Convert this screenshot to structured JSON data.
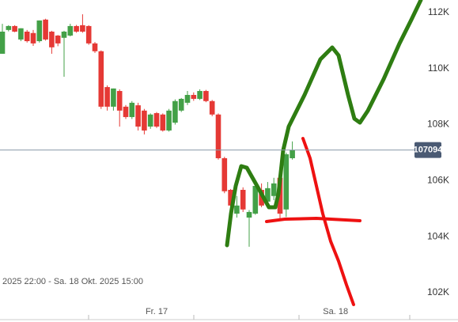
{
  "chart_data": {
    "type": "candlestick",
    "subtitle": "2025 22:00 - Sa. 18 Okt. 2025 15:00",
    "categories": [
      null,
      null,
      null,
      null,
      null,
      null,
      null,
      null,
      null,
      null,
      null,
      null,
      null,
      null,
      null,
      null,
      null,
      null,
      null,
      null,
      null,
      null,
      null,
      null,
      null,
      "Fr. 17",
      null,
      null,
      null,
      null,
      null,
      null,
      null,
      null,
      null,
      null,
      null,
      null,
      null,
      null,
      null,
      null,
      null,
      null,
      null,
      null,
      null,
      null,
      null,
      null,
      null,
      null,
      null,
      null,
      "Sa. 18",
      null,
      null,
      null,
      null,
      null,
      null,
      null,
      null,
      null,
      null,
      null
    ],
    "open": [
      110530,
      111380,
      111520,
      111040,
      111320,
      111270,
      110980,
      111750,
      111320,
      111180,
      111100,
      111180,
      111520,
      111550,
      111520,
      110900,
      110620,
      109340,
      108640,
      109200,
      108640,
      108270,
      108690,
      108500,
      107930,
      108410,
      108360,
      107790,
      108070,
      108500,
      108780,
      109060,
      108920,
      109200,
      108840,
      108360,
      106800,
      105670,
      104820,
      105670,
      104680,
      104820,
      105670,
      105250,
      105450,
      106100,
      104970,
      106800,
      null,
      null,
      null,
      null,
      null,
      null,
      null,
      null,
      null,
      null,
      null,
      null,
      null,
      null,
      null,
      null,
      null,
      null
    ],
    "high": [
      111600,
      111550,
      111550,
      111440,
      111380,
      111380,
      111720,
      111780,
      111350,
      111200,
      111350,
      111600,
      111560,
      111940,
      111550,
      110950,
      110650,
      109400,
      109290,
      109260,
      108700,
      108840,
      108780,
      108560,
      108400,
      108450,
      108400,
      108560,
      108900,
      108950,
      109200,
      109150,
      109260,
      109240,
      108880,
      108400,
      106850,
      105700,
      105450,
      105760,
      104950,
      105900,
      105900,
      105950,
      106100,
      106250,
      107000,
      107400,
      null,
      null,
      null,
      null,
      null,
      null,
      null,
      null,
      null,
      null,
      null,
      null,
      null,
      null,
      null,
      null,
      null,
      null
    ],
    "low": [
      110530,
      111330,
      111300,
      110980,
      110930,
      110810,
      110930,
      111000,
      110530,
      110800,
      109710,
      111150,
      111280,
      111280,
      110850,
      110560,
      108560,
      108500,
      108500,
      107930,
      108200,
      108200,
      107790,
      107650,
      107850,
      107880,
      107750,
      107750,
      108000,
      108450,
      108700,
      108850,
      108880,
      108800,
      108300,
      106750,
      105550,
      104820,
      104680,
      104880,
      103640,
      104780,
      105050,
      105100,
      105300,
      104600,
      104700,
      106750,
      null,
      null,
      null,
      null,
      null,
      null,
      null,
      null,
      null,
      null,
      null,
      null,
      null,
      null,
      null,
      null,
      null,
      null
    ],
    "close": [
      111320,
      111520,
      111320,
      111440,
      110980,
      110900,
      111720,
      111040,
      110760,
      110900,
      111320,
      111520,
      111320,
      111320,
      110900,
      110620,
      108640,
      108640,
      109290,
      108500,
      108270,
      108780,
      107930,
      107790,
      108360,
      107930,
      107790,
      108500,
      108840,
      108920,
      109060,
      108920,
      109200,
      108840,
      108360,
      106800,
      105620,
      105110,
      105110,
      104970,
      104880,
      105810,
      105110,
      105730,
      105900,
      104820,
      106940,
      107094,
      null,
      null,
      null,
      null,
      null,
      null,
      null,
      null,
      null,
      null,
      null,
      null,
      null,
      null,
      null,
      null,
      null,
      null
    ],
    "up_color": "#43a047",
    "down_color": "#e53935",
    "last_price": 107094,
    "ylim": [
      101290,
      112450
    ],
    "yticks": [
      {
        "value": 102000,
        "label": "102K"
      },
      {
        "value": 104000,
        "label": "104K"
      },
      {
        "value": 106000,
        "label": "106K"
      },
      {
        "value": 108000,
        "label": "108K"
      },
      {
        "value": 110000,
        "label": "110K"
      },
      {
        "value": 112000,
        "label": "112K"
      }
    ],
    "grid": false
  }
}
